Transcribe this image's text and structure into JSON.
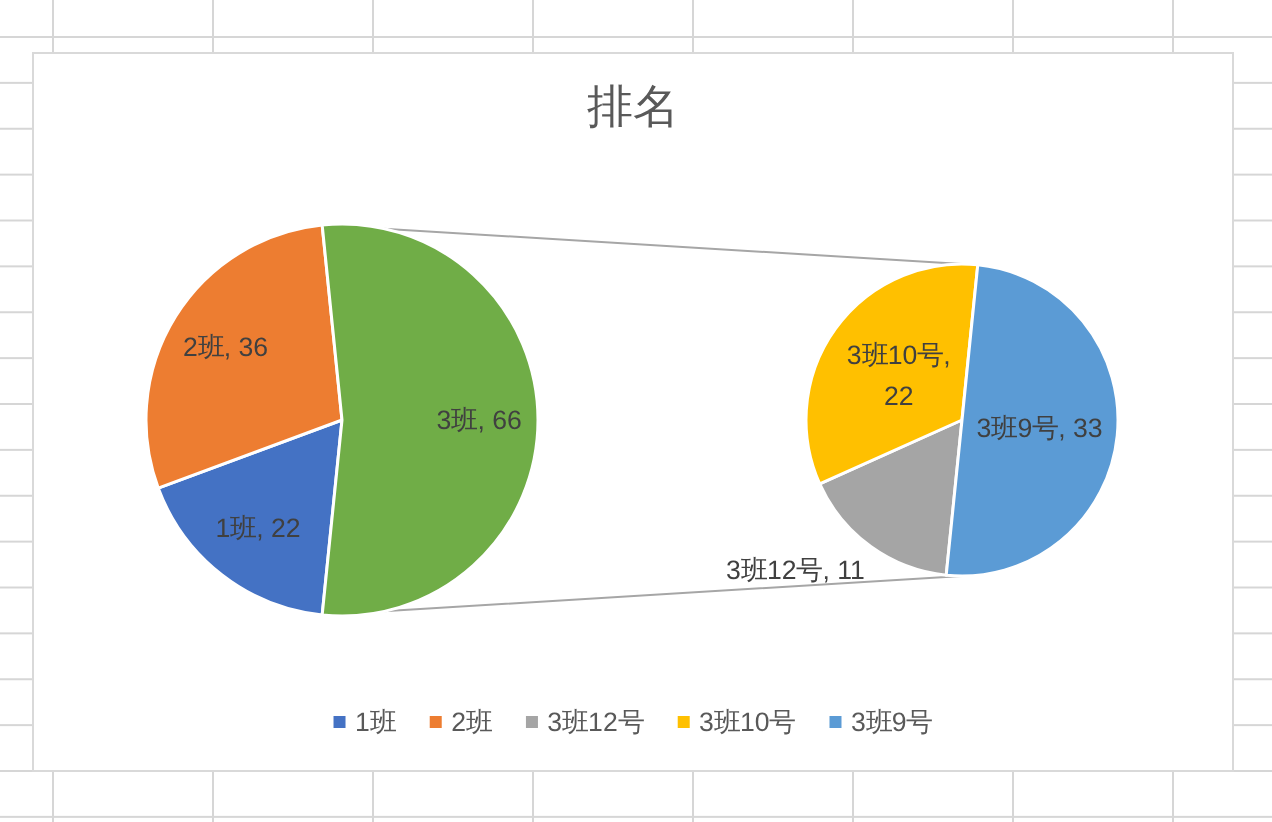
{
  "chart_data": [
    {
      "type": "pie",
      "title": "排名",
      "categories": [
        "1班",
        "2班",
        null
      ],
      "values": [
        22,
        36,
        66
      ],
      "colors": [
        "#4472c4",
        "#ed7d31",
        "#70ad47"
      ],
      "value_labels": [
        "1班, 22",
        "2班, 36",
        "3班, 66"
      ],
      "legend": "bottom"
    },
    {
      "type": "pie",
      "categories": [
        "3班12号",
        "3班10号",
        "3班9号"
      ],
      "values": [
        11,
        22,
        33
      ],
      "colors": [
        "#a5a5a5",
        "#ffc000",
        "#5b9bd5"
      ],
      "value_labels": [
        "3班12号, 11",
        "3班10号, 22",
        "3班9号, 33"
      ],
      "legend": "bottom"
    }
  ]
}
